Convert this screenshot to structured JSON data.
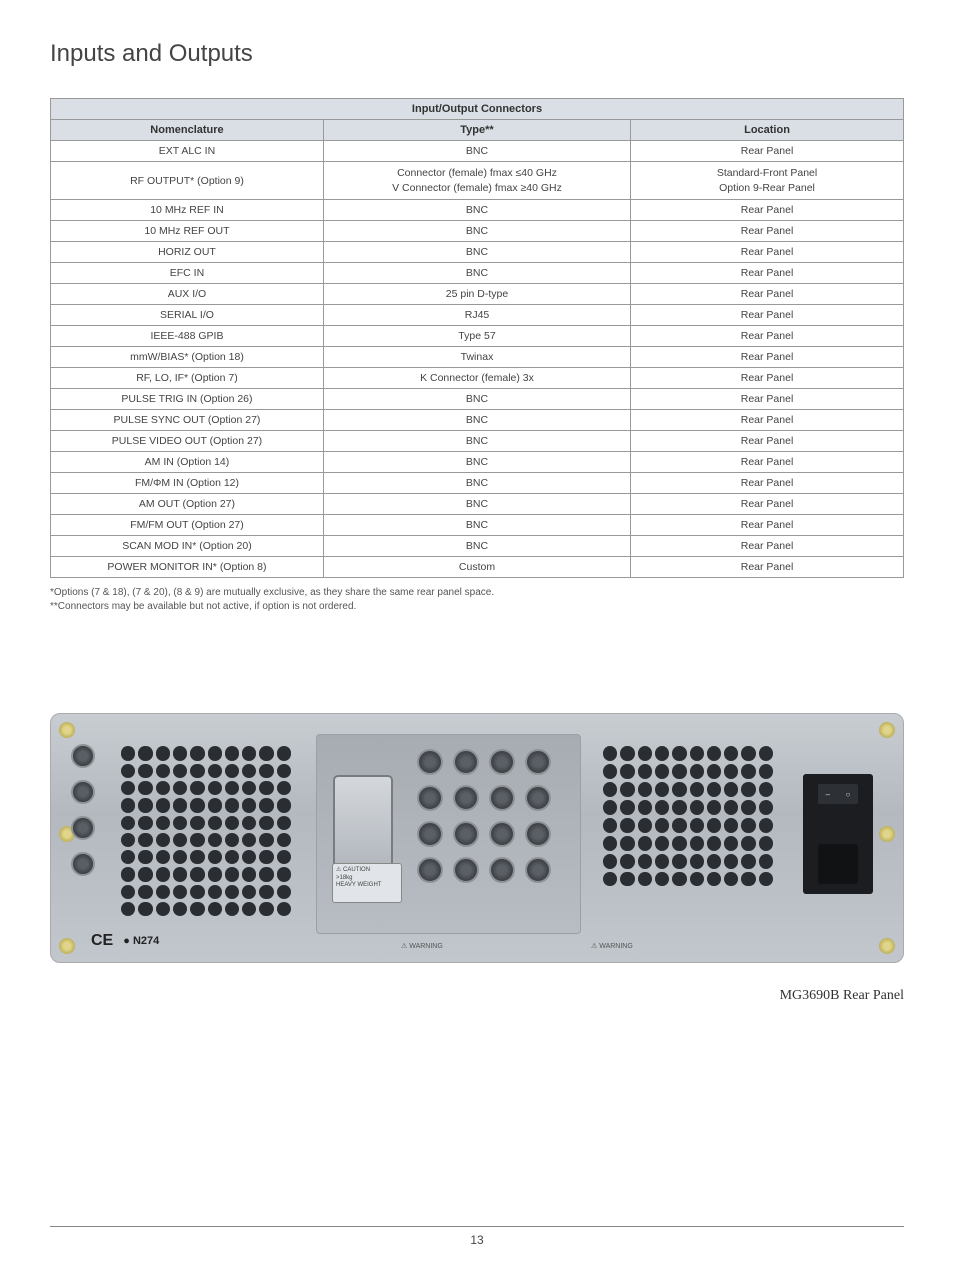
{
  "page_title": "Inputs and Outputs",
  "table": {
    "title": "Input/Output Connectors",
    "columns": [
      "Nomenclature",
      "Type**",
      "Location"
    ],
    "rows": [
      {
        "nom": "EXT ALC IN",
        "type": "BNC",
        "loc": "Rear Panel"
      },
      {
        "nom": "RF OUTPUT* (Option 9)",
        "type": "Connector (female) fmax ≤40 GHz\nV Connector (female) fmax ≥40 GHz",
        "loc": "Standard-Front Panel\nOption 9-Rear Panel"
      },
      {
        "nom": "10 MHz REF IN",
        "type": "BNC",
        "loc": "Rear Panel"
      },
      {
        "nom": "10 MHz REF OUT",
        "type": "BNC",
        "loc": "Rear Panel"
      },
      {
        "nom": "HORIZ OUT",
        "type": "BNC",
        "loc": "Rear Panel"
      },
      {
        "nom": "EFC IN",
        "type": "BNC",
        "loc": "Rear Panel"
      },
      {
        "nom": "AUX I/O",
        "type": "25 pin D-type",
        "loc": "Rear Panel"
      },
      {
        "nom": "SERIAL I/O",
        "type": "RJ45",
        "loc": "Rear Panel"
      },
      {
        "nom": "IEEE-488 GPIB",
        "type": "Type 57",
        "loc": "Rear Panel"
      },
      {
        "nom": "mmW/BIAS* (Option 18)",
        "type": "Twinax",
        "loc": "Rear Panel"
      },
      {
        "nom": "RF, LO, IF* (Option 7)",
        "type": "K Connector (female) 3x",
        "loc": "Rear Panel"
      },
      {
        "nom": "PULSE TRIG IN (Option 26)",
        "type": "BNC",
        "loc": "Rear Panel"
      },
      {
        "nom": "PULSE SYNC OUT (Option 27)",
        "type": "BNC",
        "loc": "Rear Panel"
      },
      {
        "nom": "PULSE VIDEO OUT (Option 27)",
        "type": "BNC",
        "loc": "Rear Panel"
      },
      {
        "nom": "AM IN (Option 14)",
        "type": "BNC",
        "loc": "Rear Panel"
      },
      {
        "nom": "FM/ΦM IN (Option 12)",
        "type": "BNC",
        "loc": "Rear Panel"
      },
      {
        "nom": "AM OUT (Option 27)",
        "type": "BNC",
        "loc": "Rear Panel"
      },
      {
        "nom": "FM/FM OUT (Option 27)",
        "type": "BNC",
        "loc": "Rear Panel"
      },
      {
        "nom": "SCAN MOD IN* (Option 20)",
        "type": "BNC",
        "loc": "Rear Panel"
      },
      {
        "nom": "POWER MONITOR IN* (Option 8)",
        "type": "Custom",
        "loc": "Rear Panel"
      }
    ]
  },
  "footnotes": {
    "line1": " *Options (7 & 18), (7 & 20), (8 & 9) are mutually exclusive, as they share the same rear panel space.",
    "line2": "**Connectors may be available but not active, if option is not ordered."
  },
  "image": {
    "caption": "MG3690B Rear Panel",
    "ce_mark": "CE",
    "n274": "N274",
    "caution_text": "⚠ CAUTION\n>18kg\nHEAVY WEIGHT",
    "warning1": "⚠ WARNING",
    "warning2": "⚠ WARNING",
    "switch_on": "–",
    "switch_off": "○"
  },
  "page_number": "13",
  "style": {
    "header_bg": "#d9dfe4",
    "border_color": "#999999",
    "title_fontsize": 24,
    "table_fontsize": 11
  }
}
